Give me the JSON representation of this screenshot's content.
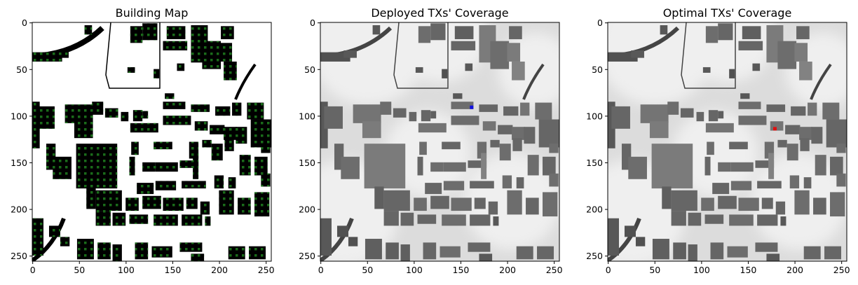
{
  "chart_data": [
    {
      "type": "heatmap",
      "title": "Building Map",
      "image": "binary building footprint map with green dot grid of candidate transmitter locations",
      "colors": {
        "background": "#ffffff",
        "building": "#000000",
        "candidate": "#1a6b1a"
      },
      "xlim": [
        0,
        255
      ],
      "ylim": [
        255,
        0
      ],
      "xticks": [
        0,
        50,
        100,
        150,
        200,
        250
      ],
      "yticks": [
        0,
        50,
        100,
        150,
        200,
        250
      ],
      "xtick_labels": [
        "0",
        "50",
        "100",
        "150",
        "200",
        "250"
      ],
      "ytick_labels": [
        "0",
        "50",
        "100",
        "150",
        "200",
        "250"
      ]
    },
    {
      "type": "heatmap",
      "title": "Deployed TXs' Coverage",
      "image": "grayscale coverage map over building layout",
      "tx": {
        "x": 162,
        "y": 91,
        "color": "#1010e0"
      },
      "xlim": [
        0,
        255
      ],
      "ylim": [
        255,
        0
      ],
      "xticks": [
        0,
        50,
        100,
        150,
        200,
        250
      ],
      "yticks": [
        0,
        50,
        100,
        150,
        200,
        250
      ],
      "xtick_labels": [
        "0",
        "50",
        "100",
        "150",
        "200",
        "250"
      ],
      "ytick_labels": [
        "0",
        "50",
        "100",
        "150",
        "200",
        "250"
      ]
    },
    {
      "type": "heatmap",
      "title": "Optimal TXs' Coverage",
      "image": "grayscale coverage map over building layout",
      "tx": {
        "x": 179,
        "y": 114,
        "color": "#e01010"
      },
      "xlim": [
        0,
        255
      ],
      "ylim": [
        255,
        0
      ],
      "xticks": [
        0,
        50,
        100,
        150,
        200,
        250
      ],
      "yticks": [
        0,
        50,
        100,
        150,
        200,
        250
      ],
      "xtick_labels": [
        "0",
        "50",
        "100",
        "150",
        "200",
        "250"
      ],
      "ytick_labels": [
        "0",
        "50",
        "100",
        "150",
        "200",
        "250"
      ]
    }
  ]
}
